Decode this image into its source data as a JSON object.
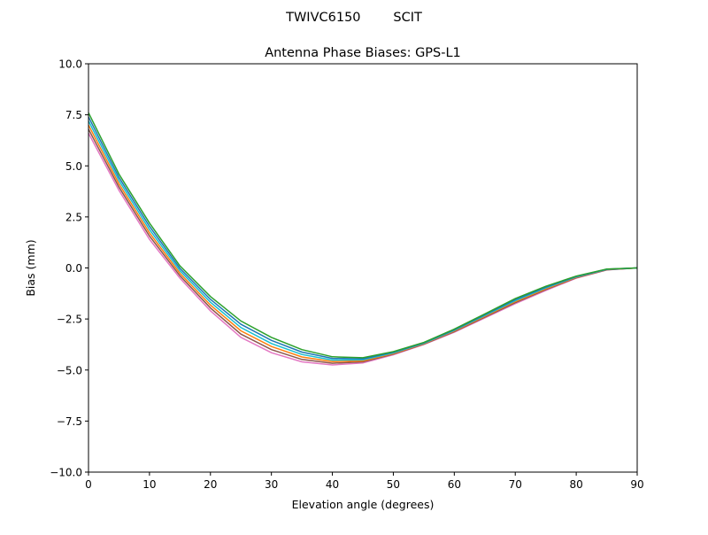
{
  "chart_data": {
    "type": "line",
    "suptitle": "TWIVC6150        SCIT",
    "title": "Antenna Phase Biases: GPS-L1",
    "xlabel": "Elevation angle (degrees)",
    "ylabel": "Bias (mm)",
    "xlim": [
      0,
      90
    ],
    "ylim": [
      -10,
      10
    ],
    "grid": false,
    "xticks": [
      0,
      10,
      20,
      30,
      40,
      50,
      60,
      70,
      80,
      90
    ],
    "xtick_labels": [
      "0",
      "10",
      "20",
      "30",
      "40",
      "50",
      "60",
      "70",
      "80",
      "90"
    ],
    "yticks": [
      -10,
      -7.5,
      -5,
      -2.5,
      0,
      2.5,
      5,
      7.5,
      10
    ],
    "ytick_labels": [
      "−10.0",
      "−7.5",
      "−5.0",
      "−2.5",
      "0.0",
      "2.5",
      "5.0",
      "7.5",
      "10.0"
    ],
    "x": [
      0,
      5,
      10,
      15,
      20,
      25,
      30,
      35,
      40,
      45,
      50,
      55,
      60,
      65,
      70,
      75,
      80,
      85,
      90
    ],
    "series": [
      {
        "color": "#e377c2",
        "values": [
          6.6,
          3.8,
          1.4,
          -0.5,
          -2.1,
          -3.4,
          -4.15,
          -4.6,
          -4.75,
          -4.65,
          -4.25,
          -3.75,
          -3.15,
          -2.45,
          -1.75,
          -1.1,
          -0.5,
          -0.1,
          0
        ]
      },
      {
        "color": "#8c564b",
        "values": [
          6.8,
          3.96,
          1.56,
          -0.38,
          -1.96,
          -3.24,
          -4.0,
          -4.48,
          -4.67,
          -4.6,
          -4.22,
          -3.73,
          -3.12,
          -2.41,
          -1.7,
          -1.06,
          -0.48,
          -0.09,
          0
        ]
      },
      {
        "color": "#ff7f0e",
        "values": [
          7.0,
          4.12,
          1.72,
          -0.26,
          -1.82,
          -3.08,
          -3.85,
          -4.36,
          -4.59,
          -4.55,
          -4.19,
          -3.71,
          -3.09,
          -2.37,
          -1.65,
          -1.02,
          -0.46,
          -0.08,
          0
        ]
      },
      {
        "color": "#17becf",
        "values": [
          7.2,
          4.28,
          1.88,
          -0.14,
          -1.68,
          -2.92,
          -3.7,
          -4.24,
          -4.51,
          -4.5,
          -4.16,
          -3.69,
          -3.06,
          -2.33,
          -1.6,
          -0.98,
          -0.44,
          -0.07,
          0
        ]
      },
      {
        "color": "#1f77b4",
        "values": [
          7.4,
          4.44,
          2.04,
          -0.02,
          -1.54,
          -2.76,
          -3.55,
          -4.12,
          -4.43,
          -4.45,
          -4.13,
          -3.67,
          -3.03,
          -2.29,
          -1.55,
          -0.94,
          -0.42,
          -0.06,
          0
        ]
      },
      {
        "color": "#2ca02c",
        "values": [
          7.6,
          4.6,
          2.2,
          0.1,
          -1.4,
          -2.6,
          -3.4,
          -4.0,
          -4.35,
          -4.4,
          -4.1,
          -3.65,
          -3.0,
          -2.25,
          -1.5,
          -0.9,
          -0.4,
          -0.05,
          0
        ]
      }
    ]
  }
}
